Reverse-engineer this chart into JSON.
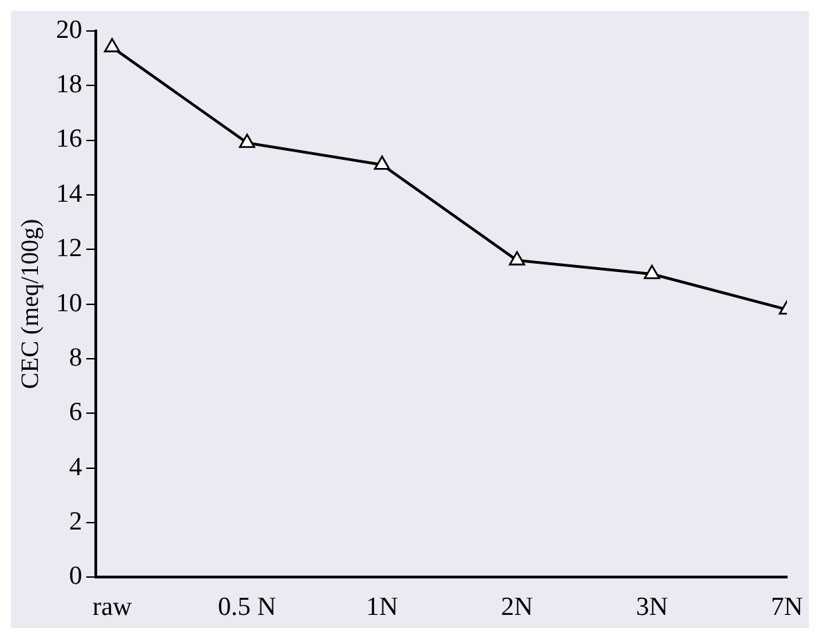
{
  "chart_data": {
    "type": "line",
    "ylabel": "CEC (meq/100g)",
    "categories": [
      "raw",
      "0.5 N",
      "1N",
      "2N",
      "3N",
      "7N"
    ],
    "values": [
      19.4,
      15.9,
      15.1,
      11.6,
      11.1,
      9.8
    ],
    "color": "#000000",
    "ylim": [
      0,
      20
    ],
    "yticks": [
      0,
      2,
      4,
      6,
      8,
      10,
      12,
      14,
      16,
      18,
      20
    ],
    "grid": false,
    "legend": false,
    "marker": "triangle",
    "line_style": "solid"
  }
}
